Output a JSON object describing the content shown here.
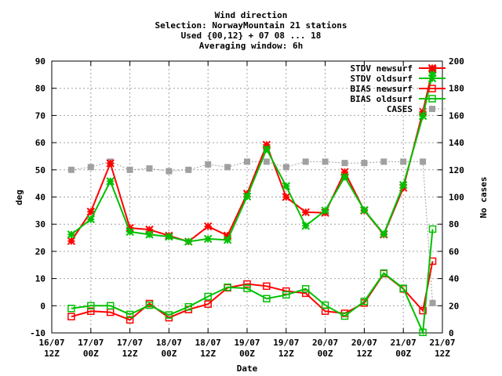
{
  "title_lines": [
    "Wind direction",
    "Selection: NorwayMountain     21 stations",
    "Used {00,12} + 07 08 ... 18",
    "Averaging window:  6h"
  ],
  "chart_data": {
    "type": "line",
    "xlabel": "Date",
    "ylabel": "deg",
    "y2label": "No cases",
    "ylim": [
      -10,
      90
    ],
    "y2lim": [
      0,
      200
    ],
    "xlim": [
      0,
      120
    ],
    "yticks": [
      -10,
      0,
      10,
      20,
      30,
      40,
      50,
      60,
      70,
      80,
      90
    ],
    "y2ticks": [
      0,
      20,
      40,
      60,
      80,
      100,
      120,
      140,
      160,
      180,
      200
    ],
    "xticks": [
      {
        "x": 0,
        "l1": "16/07",
        "l2": "12Z"
      },
      {
        "x": 12,
        "l1": "17/07",
        "l2": "00Z"
      },
      {
        "x": 24,
        "l1": "17/07",
        "l2": "12Z"
      },
      {
        "x": 36,
        "l1": "18/07",
        "l2": "00Z"
      },
      {
        "x": 48,
        "l1": "18/07",
        "l2": "12Z"
      },
      {
        "x": 60,
        "l1": "19/07",
        "l2": "00Z"
      },
      {
        "x": 72,
        "l1": "19/07",
        "l2": "12Z"
      },
      {
        "x": 84,
        "l1": "20/07",
        "l2": "00Z"
      },
      {
        "x": 96,
        "l1": "20/07",
        "l2": "12Z"
      },
      {
        "x": 108,
        "l1": "21/07",
        "l2": "00Z"
      },
      {
        "x": 120,
        "l1": "21/07",
        "l2": "12Z"
      }
    ],
    "grid": true,
    "legend_position": "top-right",
    "series": [
      {
        "name": "STDV newsurf",
        "color": "#ff0000",
        "marker": "star",
        "axis": "left",
        "x": [
          6,
          12,
          18,
          24,
          30,
          36,
          42,
          48,
          54,
          60,
          66,
          72,
          78,
          84,
          90,
          96,
          102,
          108,
          114,
          117
        ],
        "y": [
          23.8,
          34.6,
          52.4,
          28.6,
          28.0,
          25.8,
          23.6,
          29.2,
          25.8,
          41.2,
          59.2,
          40.0,
          34.4,
          34.2,
          49.2,
          35.0,
          26.2,
          43.4,
          71.4,
          87.0
        ]
      },
      {
        "name": "STDV oldsurf",
        "color": "#00c000",
        "marker": "star",
        "axis": "left",
        "x": [
          6,
          12,
          18,
          24,
          30,
          36,
          42,
          48,
          54,
          60,
          66,
          72,
          78,
          84,
          90,
          96,
          102,
          108,
          114,
          117
        ],
        "y": [
          26.2,
          31.8,
          45.8,
          27.2,
          26.2,
          25.4,
          23.6,
          24.6,
          24.2,
          40.2,
          57.6,
          44.0,
          29.4,
          35.0,
          47.4,
          35.2,
          26.4,
          44.4,
          69.8,
          85.6
        ]
      },
      {
        "name": "BIAS newsurf",
        "color": "#ff0000",
        "marker": "square",
        "axis": "left",
        "x": [
          6,
          12,
          18,
          24,
          30,
          36,
          42,
          48,
          54,
          60,
          66,
          72,
          78,
          84,
          90,
          96,
          102,
          108,
          114,
          117
        ],
        "y": [
          -4.0,
          -2.0,
          -2.4,
          -5.2,
          0.8,
          -4.4,
          -1.4,
          0.6,
          6.6,
          8.0,
          7.2,
          5.4,
          4.6,
          -2.0,
          -2.8,
          1.0,
          11.8,
          6.2,
          -1.8,
          16.4
        ]
      },
      {
        "name": "BIAS oldsurf",
        "color": "#00c000",
        "marker": "square",
        "axis": "left",
        "x": [
          6,
          12,
          18,
          24,
          30,
          36,
          42,
          48,
          54,
          60,
          66,
          72,
          78,
          84,
          90,
          96,
          102,
          108,
          114,
          117
        ],
        "y": [
          -1.0,
          0.0,
          0.0,
          -3.2,
          0.2,
          -3.4,
          -0.4,
          3.4,
          6.8,
          6.4,
          2.6,
          4.0,
          6.2,
          0.2,
          -3.8,
          1.6,
          12.0,
          6.4,
          -9.8,
          28.2
        ]
      },
      {
        "name": "CASES",
        "color": "#a0a0a0",
        "marker": "square",
        "axis": "right",
        "x": [
          6,
          12,
          18,
          24,
          30,
          36,
          42,
          48,
          54,
          60,
          66,
          72,
          78,
          84,
          90,
          96,
          102,
          108,
          114,
          117
        ],
        "y": [
          120,
          122,
          126,
          120,
          121,
          119,
          120,
          124,
          122,
          126,
          126,
          122,
          126,
          126,
          125,
          125,
          126,
          126,
          126,
          22
        ]
      }
    ]
  }
}
